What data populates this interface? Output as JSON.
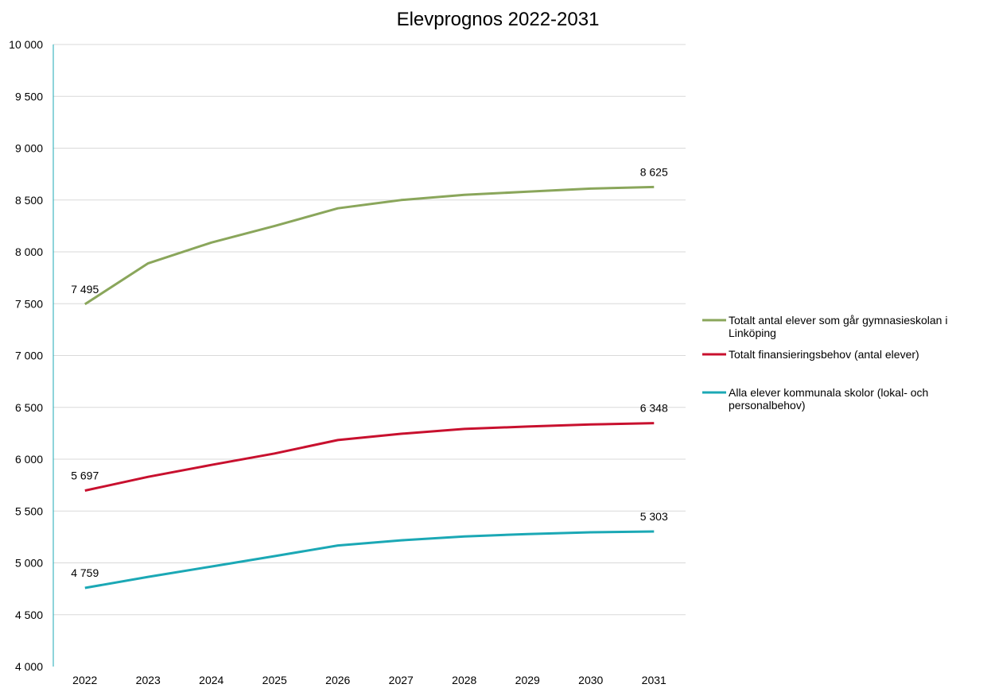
{
  "chart_data": {
    "type": "line",
    "title": "Elevprognos 2022-2031",
    "xlabel": "",
    "ylabel": "",
    "ylim": [
      4000,
      10000
    ],
    "y_ticks": [
      4000,
      4500,
      5000,
      5500,
      6000,
      6500,
      7000,
      7500,
      8000,
      8500,
      9000,
      9500,
      10000
    ],
    "y_tick_labels": [
      "4 000",
      "4 500",
      "5 000",
      "5 500",
      "6 000",
      "6 500",
      "7 000",
      "7 500",
      "8 000",
      "8 500",
      "9 000",
      "9 500",
      "10 000"
    ],
    "categories": [
      "2022",
      "2023",
      "2024",
      "2025",
      "2026",
      "2027",
      "2028",
      "2029",
      "2030",
      "2031"
    ],
    "grid": "horizontal",
    "legend_position": "right",
    "series": [
      {
        "name": "Totalt antal elever som går gymnasieskolan i Linköping",
        "legend_lines": [
          "Totalt antal elever som går gymnasieskolan i",
          "Linköping"
        ],
        "color": "#8aa65b",
        "values": [
          7495,
          7890,
          8090,
          8250,
          8420,
          8500,
          8550,
          8580,
          8610,
          8625
        ],
        "labels": [
          {
            "index": 0,
            "text": "7 495"
          },
          {
            "index": 9,
            "text": "8 625"
          }
        ]
      },
      {
        "name": "Totalt finansieringsbehov (antal elever)",
        "legend_lines": [
          "Totalt finansieringsbehov (antal elever)"
        ],
        "color": "#c8102e",
        "values": [
          5697,
          5830,
          5945,
          6055,
          6185,
          6245,
          6292,
          6315,
          6335,
          6348
        ],
        "labels": [
          {
            "index": 0,
            "text": "5 697"
          },
          {
            "index": 9,
            "text": "6 348"
          }
        ]
      },
      {
        "name": "Alla elever kommunala skolor (lokal- och personalbehov)",
        "legend_lines": [
          "Alla elever kommunala skolor (lokal- och",
          "personalbehov)"
        ],
        "color": "#1ba8b5",
        "values": [
          4759,
          4865,
          4965,
          5065,
          5168,
          5218,
          5255,
          5278,
          5295,
          5303
        ],
        "labels": [
          {
            "index": 0,
            "text": "4 759"
          },
          {
            "index": 9,
            "text": "5 303"
          }
        ]
      }
    ]
  }
}
